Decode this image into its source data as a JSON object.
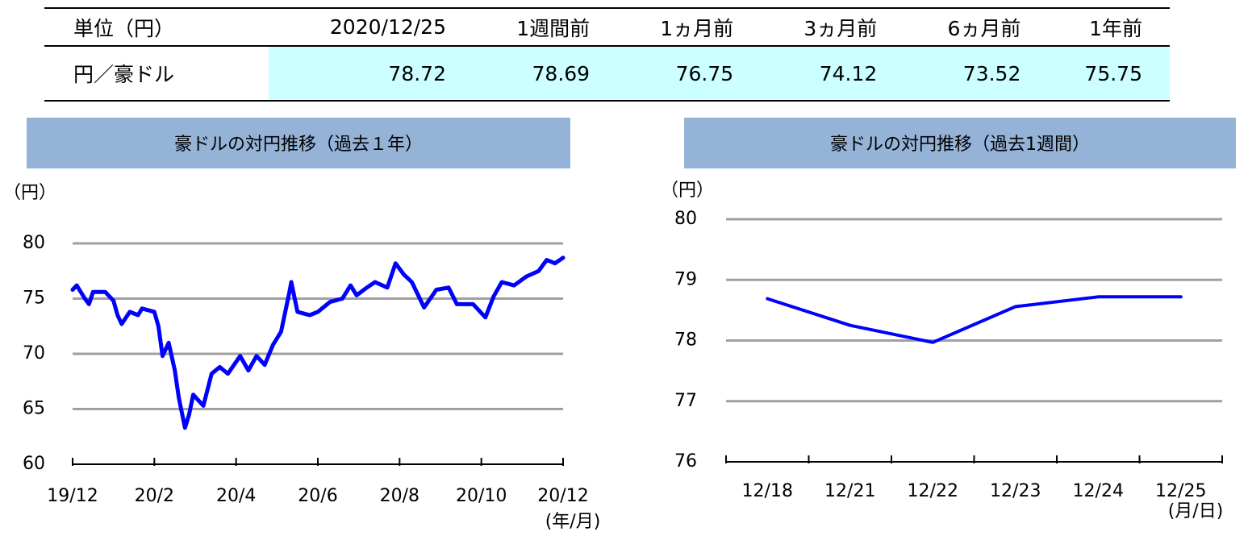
{
  "table": {
    "header": [
      "単位（円）",
      "2020/12/25",
      "1週間前",
      "1ヵ月前",
      "3ヵ月前",
      "6ヵ月前",
      "1年前"
    ],
    "rows": [
      [
        "円／豪ドル",
        78.72,
        78.69,
        76.75,
        74.12,
        73.52,
        75.75
      ]
    ]
  },
  "chart_data": [
    {
      "type": "line",
      "title": "豪ドルの対円推移（過去１年）",
      "y_label": "（円）",
      "x_label": "(年/月)",
      "x": [
        0,
        0.1,
        0.3,
        0.4,
        0.5,
        0.8,
        1.0,
        1.1,
        1.2,
        1.4,
        1.6,
        1.7,
        2.0,
        2.1,
        2.2,
        2.35,
        2.5,
        2.6,
        2.75,
        2.85,
        2.95,
        3.2,
        3.4,
        3.6,
        3.8,
        4.1,
        4.3,
        4.5,
        4.7,
        4.9,
        5.1,
        5.3,
        5.35,
        5.5,
        5.8,
        6.0,
        6.3,
        6.6,
        6.8,
        6.95,
        7.2,
        7.4,
        7.7,
        7.9,
        8.1,
        8.3,
        8.6,
        8.9,
        9.2,
        9.4,
        9.8,
        10.1,
        10.3,
        10.5,
        10.8,
        11.1,
        11.4,
        11.6,
        11.8,
        12.0
      ],
      "values": [
        75.8,
        76.2,
        75,
        74.5,
        75.6,
        75.6,
        74.8,
        73.5,
        72.7,
        73.8,
        73.5,
        74.1,
        73.8,
        72.5,
        69.8,
        71,
        68.5,
        66,
        63.3,
        64.5,
        66.3,
        65.3,
        68.2,
        68.8,
        68.2,
        69.8,
        68.5,
        69.8,
        69,
        70.8,
        72,
        75.5,
        76.5,
        73.8,
        73.5,
        73.8,
        74.7,
        75,
        76.2,
        75.3,
        76,
        76.5,
        76,
        78.2,
        77.2,
        76.5,
        74.2,
        75.8,
        76,
        74.5,
        74.5,
        73.3,
        75.2,
        76.5,
        76.2,
        77,
        77.5,
        78.5,
        78.2,
        78.7
      ],
      "color": "#0000ff",
      "xlim": [
        0,
        12
      ],
      "xticks": [
        {
          "value": 0,
          "label": "19/12"
        },
        {
          "value": 2,
          "label": "20/2"
        },
        {
          "value": 4,
          "label": "20/4"
        },
        {
          "value": 6,
          "label": "20/6"
        },
        {
          "value": 8,
          "label": "20/8"
        },
        {
          "value": 10,
          "label": "20/10"
        },
        {
          "value": 12,
          "label": "20/12"
        }
      ],
      "ylim": [
        60,
        80
      ],
      "yticks": [
        60,
        65,
        70,
        75,
        80
      ],
      "grid": true
    },
    {
      "type": "line",
      "title": "豪ドルの対円推移（過去1週間）",
      "y_label": "（円）",
      "x_label": "(月/日)",
      "categories": [
        "12/18",
        "12/21",
        "12/22",
        "12/23",
        "12/24",
        "12/25"
      ],
      "values": [
        78.69,
        78.25,
        77.97,
        78.56,
        78.72,
        78.72
      ],
      "color": "#0000ff",
      "ylim": [
        76,
        80
      ],
      "yticks": [
        76,
        77,
        78,
        79,
        80
      ],
      "grid": true
    }
  ]
}
